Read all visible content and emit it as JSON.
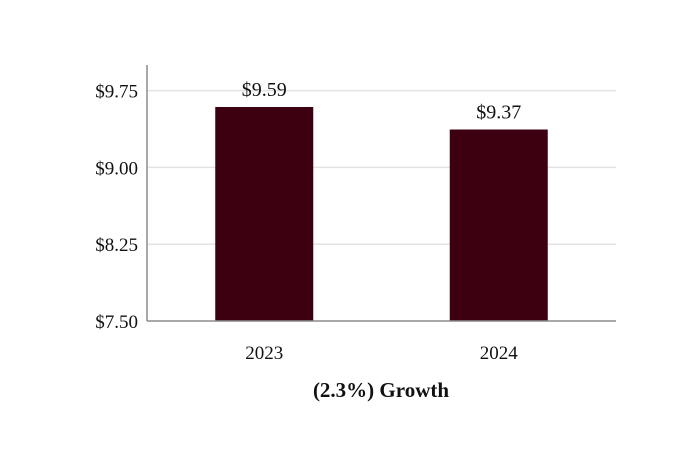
{
  "chart_data": {
    "type": "bar",
    "categories": [
      "2023",
      "2024"
    ],
    "values": [
      9.59,
      9.37
    ],
    "value_labels": [
      "$9.59",
      "$9.37"
    ],
    "title": "",
    "xlabel": "(2.3%) Growth",
    "ylabel": "",
    "ylim": [
      7.5,
      10.0
    ],
    "yticks": [
      7.5,
      8.25,
      9.0,
      9.75
    ],
    "ytick_labels": [
      "$7.50",
      "$8.25",
      "$9.00",
      "$9.75"
    ],
    "grid": true,
    "legend": "none",
    "colors": {
      "bar": "#3d0010",
      "grid": "#e3e3e3",
      "axis": "#8c8c8c"
    }
  }
}
